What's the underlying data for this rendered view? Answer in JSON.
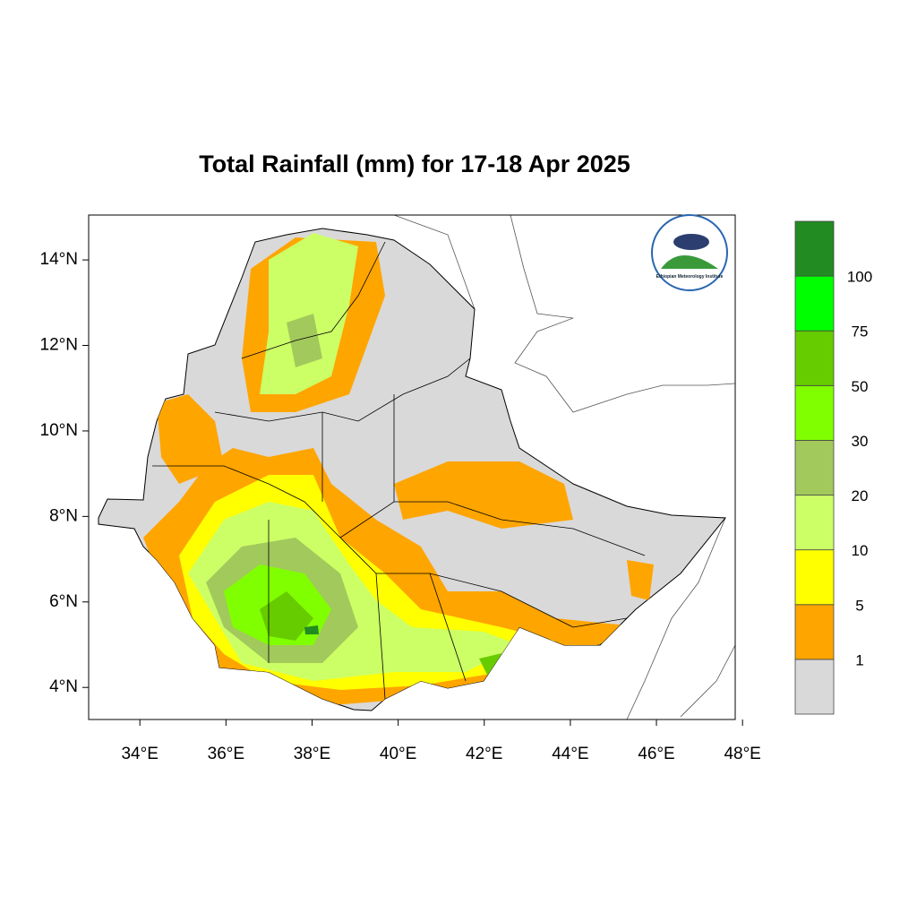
{
  "chart_data": {
    "type": "map",
    "title": "Total Rainfall (mm) for 17-18 Apr 2025",
    "xlim": [
      32.81,
      47.83
    ],
    "ylim": [
      3.25,
      15.05
    ],
    "xticks": [
      {
        "value": 34,
        "label": "34°E"
      },
      {
        "value": 36,
        "label": "36°E"
      },
      {
        "value": 38,
        "label": "38°E"
      },
      {
        "value": 40,
        "label": "40°E"
      },
      {
        "value": 42,
        "label": "42°E"
      },
      {
        "value": 44,
        "label": "44°E"
      },
      {
        "value": 46,
        "label": "46°E"
      },
      {
        "value": 48,
        "label": "48°E"
      }
    ],
    "yticks": [
      {
        "value": 4,
        "label": "4°N"
      },
      {
        "value": 6,
        "label": "6°N"
      },
      {
        "value": 8,
        "label": "8°N"
      },
      {
        "value": 10,
        "label": "10°N"
      },
      {
        "value": 12,
        "label": "12°N"
      },
      {
        "value": 14,
        "label": "14°N"
      }
    ],
    "colorbar_levels": [
      1,
      5,
      10,
      20,
      30,
      50,
      75,
      100
    ],
    "colorbar_colors": [
      "#d9d9d9",
      "#ffa500",
      "#ffff00",
      "#ccff66",
      "#a2c95c",
      "#80ff00",
      "#66cc00",
      "#00ff00",
      "#228b22"
    ],
    "logo_text": "Ethiopian Meteorology Institute"
  }
}
